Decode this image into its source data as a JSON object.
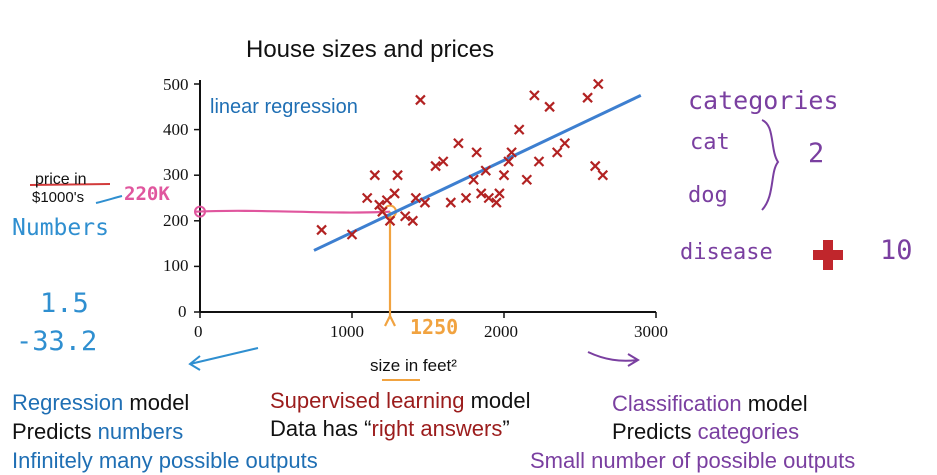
{
  "chart_data": {
    "type": "scatter",
    "title": "House sizes and prices",
    "xlabel": "size in feet²",
    "ylabel": "price in $1000's",
    "xlim": [
      0,
      3000
    ],
    "ylim": [
      0,
      500
    ],
    "x_ticks": [
      "0",
      "1000",
      "2000",
      "3000"
    ],
    "y_ticks": [
      "0",
      "100",
      "200",
      "300",
      "400",
      "500"
    ],
    "points": [
      {
        "x": 800,
        "y": 180
      },
      {
        "x": 1000,
        "y": 170
      },
      {
        "x": 1100,
        "y": 250
      },
      {
        "x": 1150,
        "y": 300
      },
      {
        "x": 1180,
        "y": 235
      },
      {
        "x": 1200,
        "y": 220
      },
      {
        "x": 1230,
        "y": 245
      },
      {
        "x": 1250,
        "y": 200
      },
      {
        "x": 1280,
        "y": 260
      },
      {
        "x": 1300,
        "y": 300
      },
      {
        "x": 1350,
        "y": 210
      },
      {
        "x": 1400,
        "y": 200
      },
      {
        "x": 1420,
        "y": 250
      },
      {
        "x": 1450,
        "y": 465
      },
      {
        "x": 1480,
        "y": 240
      },
      {
        "x": 1550,
        "y": 320
      },
      {
        "x": 1600,
        "y": 330
      },
      {
        "x": 1650,
        "y": 240
      },
      {
        "x": 1700,
        "y": 370
      },
      {
        "x": 1750,
        "y": 250
      },
      {
        "x": 1800,
        "y": 290
      },
      {
        "x": 1820,
        "y": 350
      },
      {
        "x": 1850,
        "y": 260
      },
      {
        "x": 1880,
        "y": 310
      },
      {
        "x": 1900,
        "y": 250
      },
      {
        "x": 1950,
        "y": 240
      },
      {
        "x": 1970,
        "y": 260
      },
      {
        "x": 2000,
        "y": 300
      },
      {
        "x": 2030,
        "y": 330
      },
      {
        "x": 2050,
        "y": 350
      },
      {
        "x": 2100,
        "y": 400
      },
      {
        "x": 2150,
        "y": 290
      },
      {
        "x": 2200,
        "y": 475
      },
      {
        "x": 2230,
        "y": 330
      },
      {
        "x": 2300,
        "y": 450
      },
      {
        "x": 2350,
        "y": 350
      },
      {
        "x": 2400,
        "y": 370
      },
      {
        "x": 2550,
        "y": 470
      },
      {
        "x": 2600,
        "y": 320
      },
      {
        "x": 2620,
        "y": 500
      },
      {
        "x": 2650,
        "y": 300
      }
    ],
    "regression_line": {
      "label": "linear regression",
      "from": {
        "x": 750,
        "y": 135
      },
      "to": {
        "x": 2900,
        "y": 475
      }
    },
    "annotations": {
      "y_value": "220K",
      "x_value": "1250",
      "y_unit_left": "Numbers",
      "y_struck": "price in",
      "y_unit": "$1000's"
    },
    "colors": {
      "points": "#b22222",
      "line": "#3d7fd0",
      "axis": "#111111",
      "highlight": "#e0569e",
      "marker": "#f1a340"
    }
  },
  "left_notes": {
    "n1": "1.5",
    "n2": "-33.2"
  },
  "right_notes": {
    "categories": "categories",
    "cat": "cat",
    "dog": "dog",
    "count2": "2",
    "disease": "disease",
    "count10": "10"
  },
  "bottom": {
    "left": {
      "l1a": "Regression",
      "l1b": " model",
      "l2a": "Predicts ",
      "l2b": "numbers",
      "l3": "Infinitely many possible outputs"
    },
    "center": {
      "l1a": "Supervised learning",
      "l1b": " model",
      "l2a": "Data has “",
      "l2b": "right answers",
      "l2c": "”"
    },
    "right": {
      "l1a": "Classification",
      "l1b": " model",
      "l2a": "Predicts ",
      "l2b": "categories",
      "l3": "Small number of possible outputs"
    }
  }
}
